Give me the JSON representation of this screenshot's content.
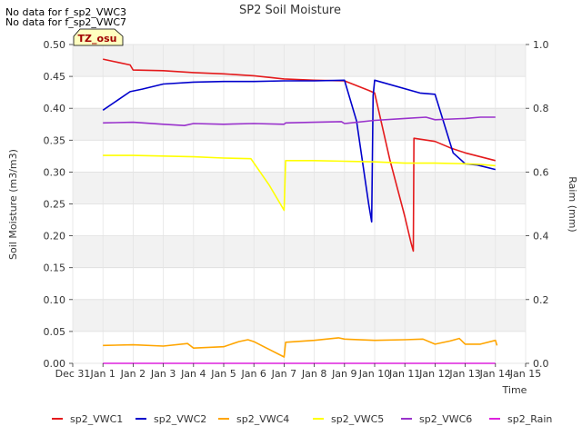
{
  "notes": [
    "No data for f_sp2_VWC3",
    "No data for f_sp2_VWC7"
  ],
  "chart_data": {
    "type": "line",
    "title": "SP2 Soil Moisture",
    "xlabel": "Time",
    "ylabel": "Soil Moisture (m3/m3)",
    "y2label": "Raim (mm)",
    "badge": "TZ_osu",
    "xlim": [
      0,
      15
    ],
    "ylim": [
      0,
      0.5
    ],
    "y2lim": [
      0,
      1.0
    ],
    "x_ticks": [
      {
        "x": 0,
        "label": "Dec 31"
      },
      {
        "x": 1,
        "label": "Jan 1"
      },
      {
        "x": 2,
        "label": "Jan 2"
      },
      {
        "x": 3,
        "label": "Jan 3"
      },
      {
        "x": 4,
        "label": "Jan 4"
      },
      {
        "x": 5,
        "label": "Jan 5"
      },
      {
        "x": 6,
        "label": "Jan 6"
      },
      {
        "x": 7,
        "label": "Jan 7"
      },
      {
        "x": 8,
        "label": "Jan 8"
      },
      {
        "x": 9,
        "label": "Jan 9"
      },
      {
        "x": 10,
        "label": "Jan 10"
      },
      {
        "x": 11,
        "label": "Jan 11"
      },
      {
        "x": 12,
        "label": "Jan 12"
      },
      {
        "x": 13,
        "label": "Jan 13"
      },
      {
        "x": 14,
        "label": "Jan 14"
      },
      {
        "x": 15,
        "label": "Jan 15"
      }
    ],
    "y_ticks": [
      {
        "v": 0.0,
        "label": "0.00"
      },
      {
        "v": 0.05,
        "label": "0.05"
      },
      {
        "v": 0.1,
        "label": "0.10"
      },
      {
        "v": 0.15,
        "label": "0.15"
      },
      {
        "v": 0.2,
        "label": "0.20"
      },
      {
        "v": 0.25,
        "label": "0.25"
      },
      {
        "v": 0.3,
        "label": "0.30"
      },
      {
        "v": 0.35,
        "label": "0.35"
      },
      {
        "v": 0.4,
        "label": "0.40"
      },
      {
        "v": 0.45,
        "label": "0.45"
      },
      {
        "v": 0.5,
        "label": "0.50"
      }
    ],
    "y2_ticks": [
      {
        "v": 0.0,
        "label": "0.0"
      },
      {
        "v": 0.2,
        "label": "0.2"
      },
      {
        "v": 0.4,
        "label": "0.4"
      },
      {
        "v": 0.6,
        "label": "0.6"
      },
      {
        "v": 0.8,
        "label": "0.8"
      },
      {
        "v": 1.0,
        "label": "1.0"
      }
    ],
    "grid": true,
    "legend_position": "bottom",
    "series": [
      {
        "name": "sp2_VWC1",
        "color": "#e41a1c",
        "axis": "left",
        "points": [
          [
            1.0,
            0.477
          ],
          [
            1.5,
            0.472
          ],
          [
            1.9,
            0.468
          ],
          [
            2.0,
            0.46
          ],
          [
            3.0,
            0.459
          ],
          [
            4.0,
            0.456
          ],
          [
            5.0,
            0.454
          ],
          [
            6.0,
            0.451
          ],
          [
            7.0,
            0.446
          ],
          [
            8.0,
            0.444
          ],
          [
            9.0,
            0.443
          ],
          [
            9.8,
            0.428
          ],
          [
            10.0,
            0.424
          ],
          [
            10.5,
            0.32
          ],
          [
            11.0,
            0.23
          ],
          [
            11.2,
            0.19
          ],
          [
            11.28,
            0.176
          ],
          [
            11.3,
            0.353
          ],
          [
            12.0,
            0.348
          ],
          [
            12.5,
            0.338
          ],
          [
            13.0,
            0.33
          ],
          [
            14.0,
            0.318
          ]
        ]
      },
      {
        "name": "sp2_VWC2",
        "color": "#0000cc",
        "axis": "left",
        "points": [
          [
            1.0,
            0.397
          ],
          [
            1.9,
            0.426
          ],
          [
            2.3,
            0.43
          ],
          [
            3.0,
            0.438
          ],
          [
            4.0,
            0.441
          ],
          [
            5.0,
            0.442
          ],
          [
            6.0,
            0.442
          ],
          [
            7.0,
            0.443
          ],
          [
            8.0,
            0.443
          ],
          [
            9.0,
            0.444
          ],
          [
            9.4,
            0.38
          ],
          [
            9.8,
            0.25
          ],
          [
            9.9,
            0.222
          ],
          [
            9.95,
            0.42
          ],
          [
            10.0,
            0.444
          ],
          [
            11.5,
            0.424
          ],
          [
            12.0,
            0.422
          ],
          [
            12.6,
            0.33
          ],
          [
            13.0,
            0.313
          ],
          [
            13.4,
            0.311
          ],
          [
            14.0,
            0.304
          ]
        ]
      },
      {
        "name": "sp2_VWC4",
        "color": "#ffa500",
        "axis": "left",
        "points": [
          [
            1.0,
            0.028
          ],
          [
            2.0,
            0.029
          ],
          [
            3.0,
            0.027
          ],
          [
            3.8,
            0.031
          ],
          [
            4.0,
            0.024
          ],
          [
            5.0,
            0.026
          ],
          [
            5.5,
            0.034
          ],
          [
            5.8,
            0.037
          ],
          [
            6.0,
            0.034
          ],
          [
            6.5,
            0.022
          ],
          [
            7.0,
            0.01
          ],
          [
            7.05,
            0.033
          ],
          [
            8.0,
            0.036
          ],
          [
            8.8,
            0.04
          ],
          [
            9.0,
            0.038
          ],
          [
            10.0,
            0.036
          ],
          [
            11.0,
            0.037
          ],
          [
            11.6,
            0.038
          ],
          [
            12.0,
            0.03
          ],
          [
            12.5,
            0.035
          ],
          [
            12.8,
            0.039
          ],
          [
            13.0,
            0.03
          ],
          [
            13.5,
            0.03
          ],
          [
            14.0,
            0.036
          ],
          [
            14.05,
            0.028
          ]
        ]
      },
      {
        "name": "sp2_VWC5",
        "color": "#ffff00",
        "axis": "left",
        "points": [
          [
            1.0,
            0.326
          ],
          [
            2.0,
            0.326
          ],
          [
            3.0,
            0.325
          ],
          [
            4.0,
            0.324
          ],
          [
            5.0,
            0.322
          ],
          [
            5.9,
            0.321
          ],
          [
            6.5,
            0.28
          ],
          [
            7.0,
            0.24
          ],
          [
            7.05,
            0.318
          ],
          [
            8.0,
            0.318
          ],
          [
            9.0,
            0.317
          ],
          [
            10.0,
            0.316
          ],
          [
            11.0,
            0.314
          ],
          [
            12.0,
            0.314
          ],
          [
            13.0,
            0.313
          ],
          [
            13.5,
            0.312
          ],
          [
            14.0,
            0.31
          ]
        ]
      },
      {
        "name": "sp2_VWC6",
        "color": "#9932cc",
        "axis": "left",
        "points": [
          [
            1.0,
            0.377
          ],
          [
            2.0,
            0.378
          ],
          [
            3.0,
            0.375
          ],
          [
            3.7,
            0.373
          ],
          [
            4.0,
            0.376
          ],
          [
            5.0,
            0.375
          ],
          [
            6.0,
            0.376
          ],
          [
            7.0,
            0.375
          ],
          [
            7.05,
            0.377
          ],
          [
            8.0,
            0.378
          ],
          [
            8.9,
            0.379
          ],
          [
            9.0,
            0.376
          ],
          [
            10.0,
            0.381
          ],
          [
            11.0,
            0.384
          ],
          [
            11.7,
            0.386
          ],
          [
            12.0,
            0.382
          ],
          [
            13.0,
            0.384
          ],
          [
            13.5,
            0.386
          ],
          [
            14.0,
            0.386
          ]
        ]
      },
      {
        "name": "sp2_Rain",
        "color": "#dd22dd",
        "axis": "right",
        "points": [
          [
            1.0,
            0.0
          ],
          [
            14.0,
            0.0
          ]
        ]
      }
    ]
  }
}
